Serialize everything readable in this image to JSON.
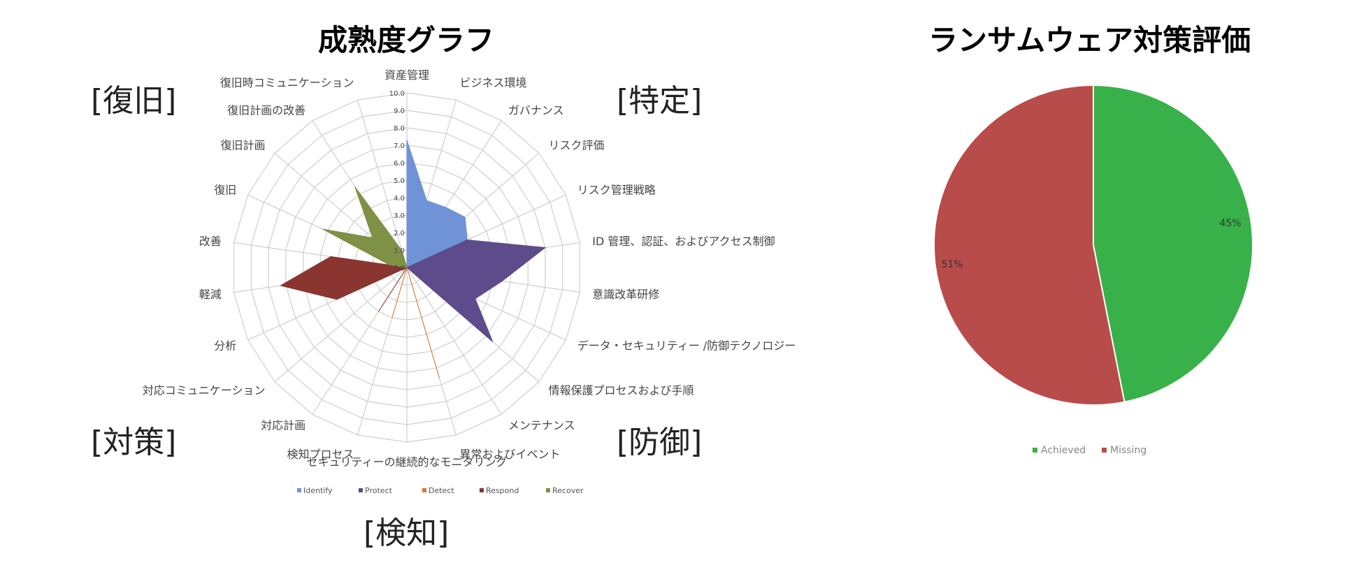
{
  "chart_data": [
    {
      "type": "radar",
      "title": "成熟度グラフ",
      "rlim": [
        0,
        10
      ],
      "tick_labels": [
        "0.0",
        "1.0",
        "2.0",
        "3.0",
        "4.0",
        "5.0",
        "6.0",
        "7.0",
        "8.0",
        "9.0",
        "10.0"
      ],
      "categories": [
        "資産管理",
        "ビジネス環境",
        "ガバナンス",
        "リスク評価",
        "リスク管理戦略",
        "ID 管理、認証、およびアクセス制御",
        "意識改革研修",
        "データ・セキュリティー /防御テクノロジー",
        "情報保護プロセスおよび手順",
        "メンテナンス",
        "異常およびイベント",
        "セキュリティーの継続的なモニタリング",
        "検知プロセス",
        "対応計画",
        "対応コミュニケーション",
        "分析",
        "軽減",
        "改善",
        "復旧",
        "復旧計画",
        "復旧計画の改善",
        "復旧時コミュニケーション"
      ],
      "series": [
        {
          "name": "Identify",
          "color": "#6f93d6",
          "values": [
            7.3,
            4.0,
            4.1,
            4.4,
            3.8,
            0,
            0,
            0,
            0,
            0,
            0,
            0,
            0,
            0,
            0,
            0,
            0,
            0,
            0,
            0,
            0,
            0
          ]
        },
        {
          "name": "Protect",
          "color": "#5e4b8b",
          "values": [
            0,
            0,
            0,
            0,
            3.8,
            8.0,
            5.5,
            4.3,
            6.5,
            0,
            0,
            0,
            0,
            0,
            0,
            0,
            0,
            0,
            0,
            0,
            0,
            0
          ]
        },
        {
          "name": "Detect",
          "color": "#d7772f",
          "values": [
            0,
            0,
            0,
            0,
            0,
            0,
            0,
            0,
            0,
            0,
            6.6,
            0,
            3.0,
            0,
            0,
            0,
            0,
            0,
            0,
            0,
            0,
            0
          ]
        },
        {
          "name": "Respond",
          "color": "#8b3530",
          "values": [
            0,
            0,
            0,
            0,
            0,
            0,
            0,
            0,
            0,
            0,
            0,
            0,
            0,
            3.0,
            0,
            4.4,
            7.3,
            4.4,
            0,
            0,
            0,
            0
          ]
        },
        {
          "name": "Recover",
          "color": "#7e9145",
          "values": [
            0,
            0,
            0,
            0,
            0,
            0,
            0,
            0,
            0,
            0,
            0,
            0,
            0,
            0,
            0,
            0,
            0,
            1.0,
            5.3,
            2.6,
            5.5,
            1.0
          ]
        }
      ]
    },
    {
      "type": "pie",
      "title": "ランサムウェア対策評価",
      "slices": [
        {
          "name": "Achieved",
          "value": 45,
          "label": "45%",
          "color": "#38b14a"
        },
        {
          "name": "Missing",
          "value": 51,
          "label": "51%",
          "color": "#b84c4a"
        }
      ]
    }
  ],
  "group_labels": [
    "[特定]",
    "[防御]",
    "[検知]",
    "[対策]",
    "[復旧]"
  ]
}
